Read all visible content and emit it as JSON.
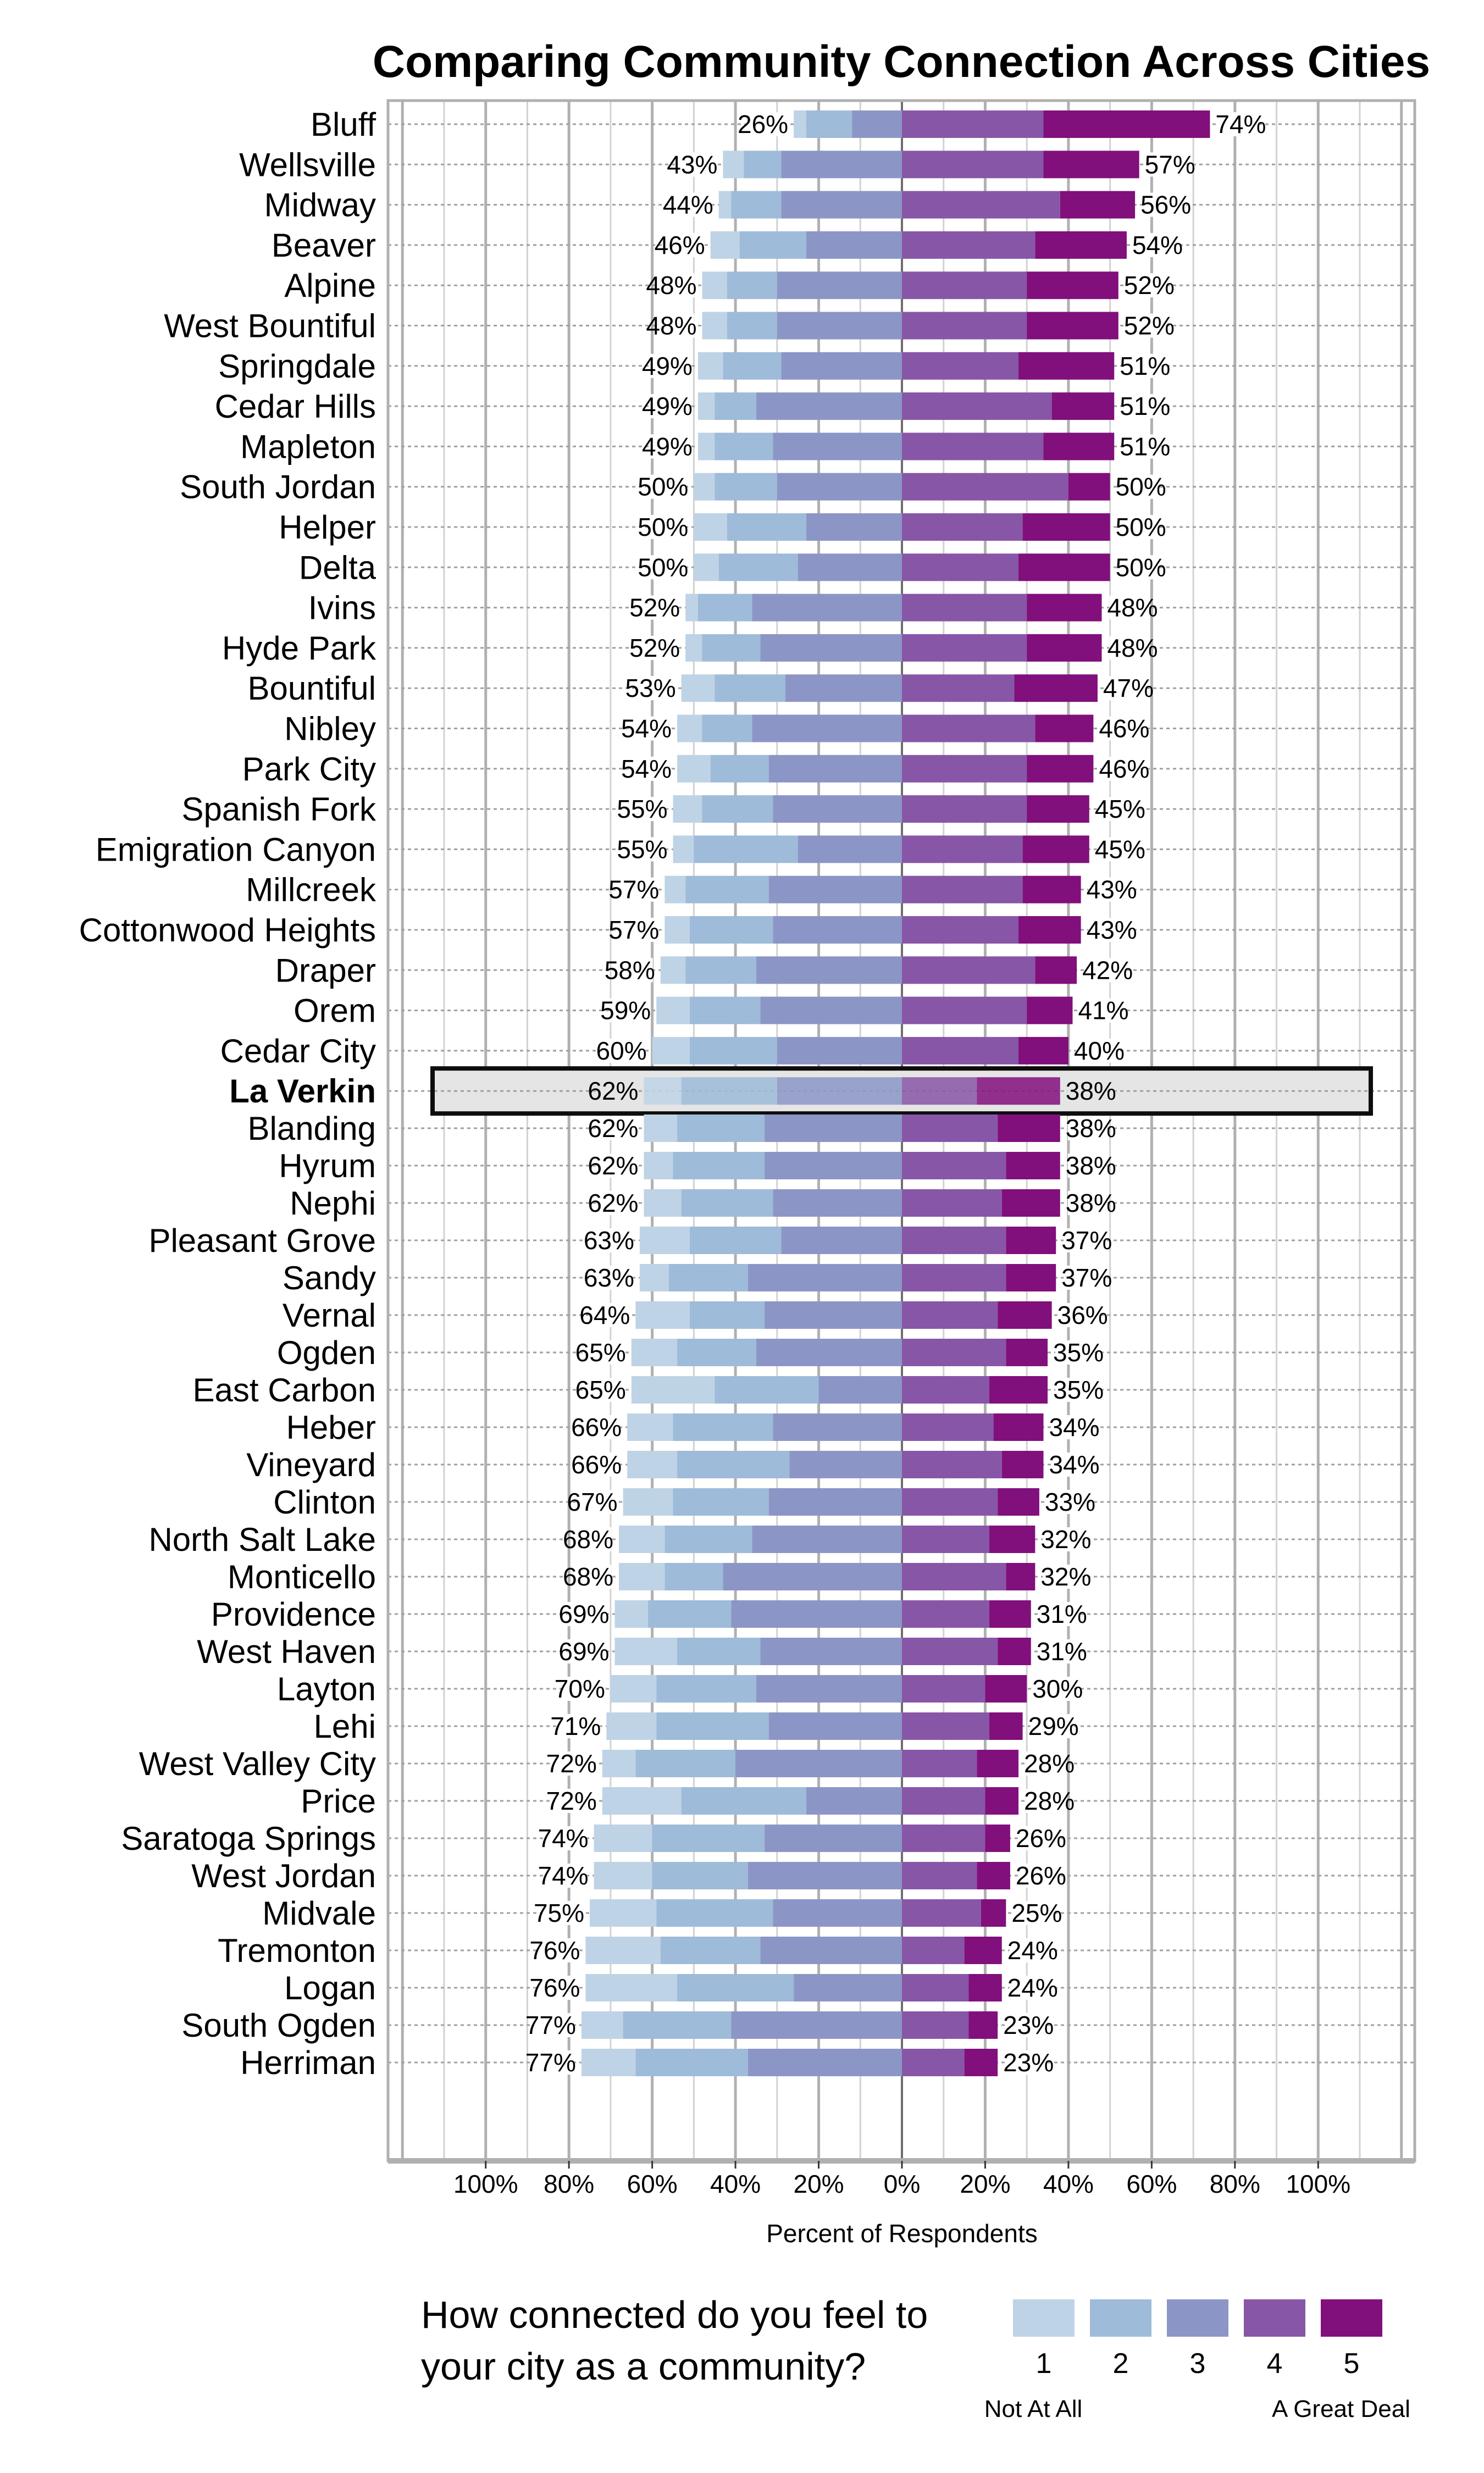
{
  "chart_data": {
    "type": "bar",
    "orientation": "horizontal",
    "stacking": "diverging",
    "title": "Comparing Community Connection Across Cities",
    "xlabel": "Percent of Respondents",
    "ylabel": "",
    "xlim": [
      -100,
      100
    ],
    "x_ticks": [
      "100%",
      "80%",
      "60%",
      "40%",
      "20%",
      "0%",
      "20%",
      "40%",
      "60%",
      "80%",
      "100%"
    ],
    "grid": true,
    "highlighted_category": "La Verkin",
    "legend": {
      "title_lines": [
        "How connected do you feel to",
        "your city as a community?"
      ],
      "placement": "bottom-right",
      "levels": [
        "1",
        "2",
        "3",
        "4",
        "5"
      ],
      "low_label": "Not At All",
      "high_label": "A Great Deal"
    },
    "colors": [
      "#bfd3e6",
      "#9ebbd9",
      "#8c96c6",
      "#8856a7",
      "#810f7c"
    ],
    "rows": [
      {
        "city": "Bluff",
        "values": [
          3,
          11,
          12,
          34,
          40
        ],
        "left_label": "26%",
        "right_label": "74%"
      },
      {
        "city": "Wellsville",
        "values": [
          5,
          9,
          29,
          34,
          23
        ],
        "left_label": "43%",
        "right_label": "57%"
      },
      {
        "city": "Midway",
        "values": [
          3,
          12,
          29,
          38,
          18
        ],
        "left_label": "44%",
        "right_label": "56%"
      },
      {
        "city": "Beaver",
        "values": [
          7,
          16,
          23,
          32,
          22
        ],
        "left_label": "46%",
        "right_label": "54%"
      },
      {
        "city": "Alpine",
        "values": [
          6,
          12,
          30,
          30,
          22
        ],
        "left_label": "48%",
        "right_label": "52%"
      },
      {
        "city": "West Bountiful",
        "values": [
          6,
          12,
          30,
          30,
          22
        ],
        "left_label": "48%",
        "right_label": "52%"
      },
      {
        "city": "Springdale",
        "values": [
          6,
          14,
          29,
          28,
          23
        ],
        "left_label": "49%",
        "right_label": "51%"
      },
      {
        "city": "Cedar Hills",
        "values": [
          4,
          10,
          35,
          36,
          15
        ],
        "left_label": "49%",
        "right_label": "51%"
      },
      {
        "city": "Mapleton",
        "values": [
          4,
          14,
          31,
          34,
          17
        ],
        "left_label": "49%",
        "right_label": "51%"
      },
      {
        "city": "South Jordan",
        "values": [
          5,
          15,
          30,
          40,
          10
        ],
        "left_label": "50%",
        "right_label": "50%"
      },
      {
        "city": "Helper",
        "values": [
          8,
          19,
          23,
          29,
          21
        ],
        "left_label": "50%",
        "right_label": "50%"
      },
      {
        "city": "Delta",
        "values": [
          6,
          19,
          25,
          28,
          22
        ],
        "left_label": "50%",
        "right_label": "50%"
      },
      {
        "city": "Ivins",
        "values": [
          3,
          13,
          36,
          30,
          18
        ],
        "left_label": "52%",
        "right_label": "48%"
      },
      {
        "city": "Hyde Park",
        "values": [
          4,
          14,
          34,
          30,
          18
        ],
        "left_label": "52%",
        "right_label": "48%"
      },
      {
        "city": "Bountiful",
        "values": [
          8,
          17,
          28,
          27,
          20
        ],
        "left_label": "53%",
        "right_label": "47%"
      },
      {
        "city": "Nibley",
        "values": [
          6,
          12,
          36,
          32,
          14
        ],
        "left_label": "54%",
        "right_label": "46%"
      },
      {
        "city": "Park City",
        "values": [
          8,
          14,
          32,
          30,
          16
        ],
        "left_label": "54%",
        "right_label": "46%"
      },
      {
        "city": "Spanish Fork",
        "values": [
          7,
          17,
          31,
          30,
          15
        ],
        "left_label": "55%",
        "right_label": "45%"
      },
      {
        "city": "Emigration Canyon",
        "values": [
          5,
          25,
          25,
          29,
          16
        ],
        "left_label": "55%",
        "right_label": "45%"
      },
      {
        "city": "Millcreek",
        "values": [
          5,
          20,
          32,
          29,
          14
        ],
        "left_label": "57%",
        "right_label": "43%"
      },
      {
        "city": "Cottonwood Heights",
        "values": [
          6,
          20,
          31,
          28,
          15
        ],
        "left_label": "57%",
        "right_label": "43%"
      },
      {
        "city": "Draper",
        "values": [
          6,
          17,
          35,
          32,
          10
        ],
        "left_label": "58%",
        "right_label": "42%"
      },
      {
        "city": "Orem",
        "values": [
          8,
          17,
          34,
          30,
          11
        ],
        "left_label": "59%",
        "right_label": "41%"
      },
      {
        "city": "Cedar City",
        "values": [
          9,
          21,
          30,
          28,
          12
        ],
        "left_label": "60%",
        "right_label": "40%"
      },
      {
        "city": "La Verkin",
        "values": [
          9,
          23,
          30,
          18,
          20
        ],
        "left_label": "62%",
        "right_label": "38%"
      },
      {
        "city": "Blanding",
        "values": [
          8,
          21,
          33,
          23,
          15
        ],
        "left_label": "62%",
        "right_label": "38%"
      },
      {
        "city": "Hyrum",
        "values": [
          7,
          22,
          33,
          25,
          13
        ],
        "left_label": "62%",
        "right_label": "38%"
      },
      {
        "city": "Nephi",
        "values": [
          9,
          22,
          31,
          24,
          14
        ],
        "left_label": "62%",
        "right_label": "38%"
      },
      {
        "city": "Pleasant Grove",
        "values": [
          12,
          22,
          29,
          25,
          12
        ],
        "left_label": "63%",
        "right_label": "37%"
      },
      {
        "city": "Sandy",
        "values": [
          7,
          19,
          37,
          25,
          12
        ],
        "left_label": "63%",
        "right_label": "37%"
      },
      {
        "city": "Vernal",
        "values": [
          13,
          18,
          33,
          23,
          13
        ],
        "left_label": "64%",
        "right_label": "36%"
      },
      {
        "city": "Ogden",
        "values": [
          11,
          19,
          35,
          25,
          10
        ],
        "left_label": "65%",
        "right_label": "35%"
      },
      {
        "city": "East Carbon",
        "values": [
          20,
          25,
          20,
          21,
          14
        ],
        "left_label": "65%",
        "right_label": "35%"
      },
      {
        "city": "Heber",
        "values": [
          11,
          24,
          31,
          22,
          12
        ],
        "left_label": "66%",
        "right_label": "34%"
      },
      {
        "city": "Vineyard",
        "values": [
          12,
          27,
          27,
          24,
          10
        ],
        "left_label": "66%",
        "right_label": "34%"
      },
      {
        "city": "Clinton",
        "values": [
          12,
          23,
          32,
          23,
          10
        ],
        "left_label": "67%",
        "right_label": "33%"
      },
      {
        "city": "North Salt Lake",
        "values": [
          11,
          21,
          36,
          21,
          11
        ],
        "left_label": "68%",
        "right_label": "32%"
      },
      {
        "city": "Monticello",
        "values": [
          11,
          14,
          43,
          25,
          7
        ],
        "left_label": "68%",
        "right_label": "32%"
      },
      {
        "city": "Providence",
        "values": [
          8,
          20,
          41,
          21,
          10
        ],
        "left_label": "69%",
        "right_label": "31%"
      },
      {
        "city": "West Haven",
        "values": [
          15,
          20,
          34,
          23,
          8
        ],
        "left_label": "69%",
        "right_label": "31%"
      },
      {
        "city": "Layton",
        "values": [
          11,
          24,
          35,
          20,
          10
        ],
        "left_label": "70%",
        "right_label": "30%"
      },
      {
        "city": "Lehi",
        "values": [
          12,
          27,
          32,
          21,
          8
        ],
        "left_label": "71%",
        "right_label": "29%"
      },
      {
        "city": "West Valley City",
        "values": [
          8,
          24,
          40,
          18,
          10
        ],
        "left_label": "72%",
        "right_label": "28%"
      },
      {
        "city": "Price",
        "values": [
          19,
          30,
          23,
          20,
          8
        ],
        "left_label": "72%",
        "right_label": "28%"
      },
      {
        "city": "Saratoga Springs",
        "values": [
          14,
          27,
          33,
          20,
          6
        ],
        "left_label": "74%",
        "right_label": "26%"
      },
      {
        "city": "West Jordan",
        "values": [
          14,
          23,
          37,
          18,
          8
        ],
        "left_label": "74%",
        "right_label": "26%"
      },
      {
        "city": "Midvale",
        "values": [
          16,
          28,
          31,
          19,
          6
        ],
        "left_label": "75%",
        "right_label": "25%"
      },
      {
        "city": "Tremonton",
        "values": [
          18,
          24,
          34,
          15,
          9
        ],
        "left_label": "76%",
        "right_label": "24%"
      },
      {
        "city": "Logan",
        "values": [
          22,
          28,
          26,
          16,
          8
        ],
        "left_label": "76%",
        "right_label": "24%"
      },
      {
        "city": "South Ogden",
        "values": [
          10,
          26,
          41,
          16,
          7
        ],
        "left_label": "77%",
        "right_label": "23%"
      },
      {
        "city": "Herriman",
        "values": [
          13,
          27,
          37,
          15,
          8
        ],
        "left_label": "77%",
        "right_label": "23%"
      }
    ]
  }
}
